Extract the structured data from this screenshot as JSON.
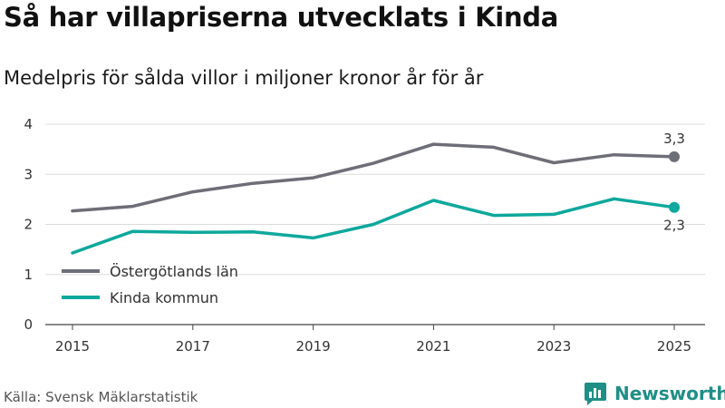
{
  "title": "Så har villapriserna utvecklats i Kinda",
  "subtitle": "Medelpris för sålda villor i miljoner kronor år för år",
  "source": "Källa: Svensk Mäklarstatistik",
  "brand": "Newsworthy",
  "chart_data": {
    "type": "line",
    "title": "Så har villapriserna utvecklats i Kinda",
    "subtitle": "Medelpris för sålda villor i miljoner kronor år för år",
    "xlabel": "",
    "ylabel": "",
    "ylim": [
      0,
      4
    ],
    "yticks": [
      0,
      1,
      2,
      3,
      4
    ],
    "xticks": [
      2015,
      2017,
      2019,
      2021,
      2023,
      2025
    ],
    "x": [
      2015,
      2016,
      2017,
      2018,
      2019,
      2020,
      2021,
      2022,
      2023,
      2024,
      2025
    ],
    "legend_position": "bottom-left",
    "series": [
      {
        "name": "Östergötlands län",
        "color": "#6e6e78",
        "values": [
          2.27,
          2.36,
          2.65,
          2.82,
          2.93,
          3.22,
          3.6,
          3.54,
          3.23,
          3.39,
          3.35
        ],
        "end_label": "3,3"
      },
      {
        "name": "Kinda kommun",
        "color": "#0ea89c",
        "values": [
          1.43,
          1.86,
          1.84,
          1.85,
          1.73,
          2.0,
          2.48,
          2.18,
          2.2,
          2.51,
          2.34
        ],
        "end_label": "2,3"
      }
    ]
  }
}
